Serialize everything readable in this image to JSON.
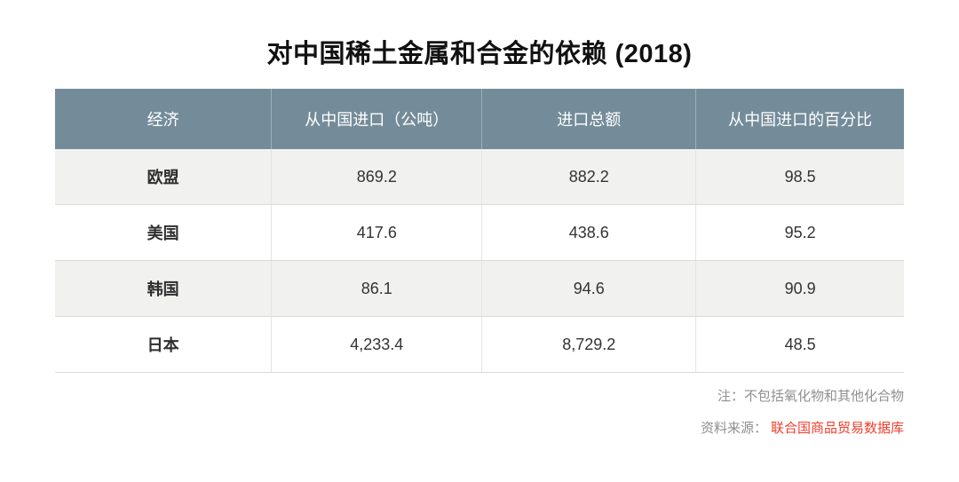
{
  "title": "对中国稀土金属和合金的依赖 (2018)",
  "table": {
    "columns": [
      "经济",
      "从中国进口（公吨）",
      "进口总额",
      "从中国进口的百分比"
    ],
    "rows": [
      [
        "欧盟",
        "869.2",
        "882.2",
        "98.5"
      ],
      [
        "美国",
        "417.6",
        "438.6",
        "95.2"
      ],
      [
        "韩国",
        "86.1",
        "94.6",
        "90.9"
      ],
      [
        "日本",
        "4,233.4",
        "8,729.2",
        "48.5"
      ]
    ]
  },
  "footer": {
    "note": "注：不包括氧化物和其他化合物",
    "source_label": "资料来源：",
    "source_link": "联合国商品贸易数据库"
  },
  "colors": {
    "header_bg": "#748c99",
    "stripe_bg": "#f1f1f0",
    "header_text": "#ffffff",
    "body_text": "#333333",
    "note_text": "#8f8f8f",
    "source_link": "#f23e2b",
    "row_border": "#dadada"
  },
  "chart_data": {
    "type": "table",
    "title": "对中国稀土金属和合金的依赖 (2018)",
    "columns": [
      "经济",
      "从中国进口（公吨）",
      "进口总额",
      "从中国进口的百分比"
    ],
    "rows": [
      [
        "欧盟",
        869.2,
        882.2,
        98.5
      ],
      [
        "美国",
        417.6,
        438.6,
        95.2
      ],
      [
        "韩国",
        86.1,
        94.6,
        90.9
      ],
      [
        "日本",
        4233.4,
        8729.2,
        48.5
      ]
    ],
    "note": "注：不包括氧化物和其他化合物",
    "source": "资料来源：联合国商品贸易数据库"
  }
}
